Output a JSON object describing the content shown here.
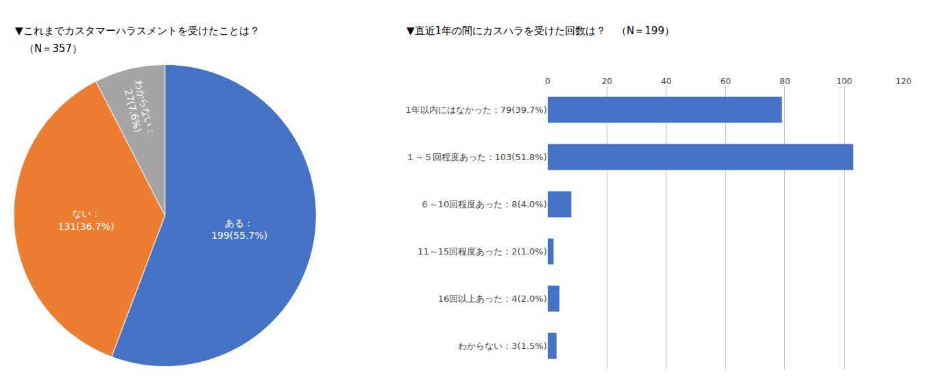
{
  "chart_data": [
    {
      "type": "pie",
      "title": "▼これまでカスタマーハラスメントを受けたことは？",
      "subtitle": "（N＝357）",
      "values": [
        199,
        131,
        27
      ],
      "value_labels": [
        "ある：\n199(55.7%)",
        "ない：\n131(36.7%)",
        "わからない：\n27(7.6%)"
      ],
      "colors": [
        "#4472C4",
        "#ED7D31",
        "#A5A5A5"
      ],
      "data_labels": true
    },
    {
      "type": "bar",
      "title": "▼直近1年の間にカスハラを受けた回数は？　（N＝199）",
      "orientation": "horizontal",
      "categories": [
        "1年以内にはなかった：79(39.7%)",
        "１～５回程度あった：103(51.8%)",
        "６～10回程度あった：8(4.0%)",
        "11～15回程度あった：2(1.0%)",
        "16回以上あった：4(2.0%)",
        "わからない：3(1.5%)"
      ],
      "values": [
        79,
        103,
        8,
        2,
        4,
        3
      ],
      "color": "#4472C4",
      "xlim": [
        0,
        120
      ],
      "xticks": [
        0,
        20,
        40,
        60,
        80,
        100,
        120
      ],
      "grid": true
    }
  ]
}
